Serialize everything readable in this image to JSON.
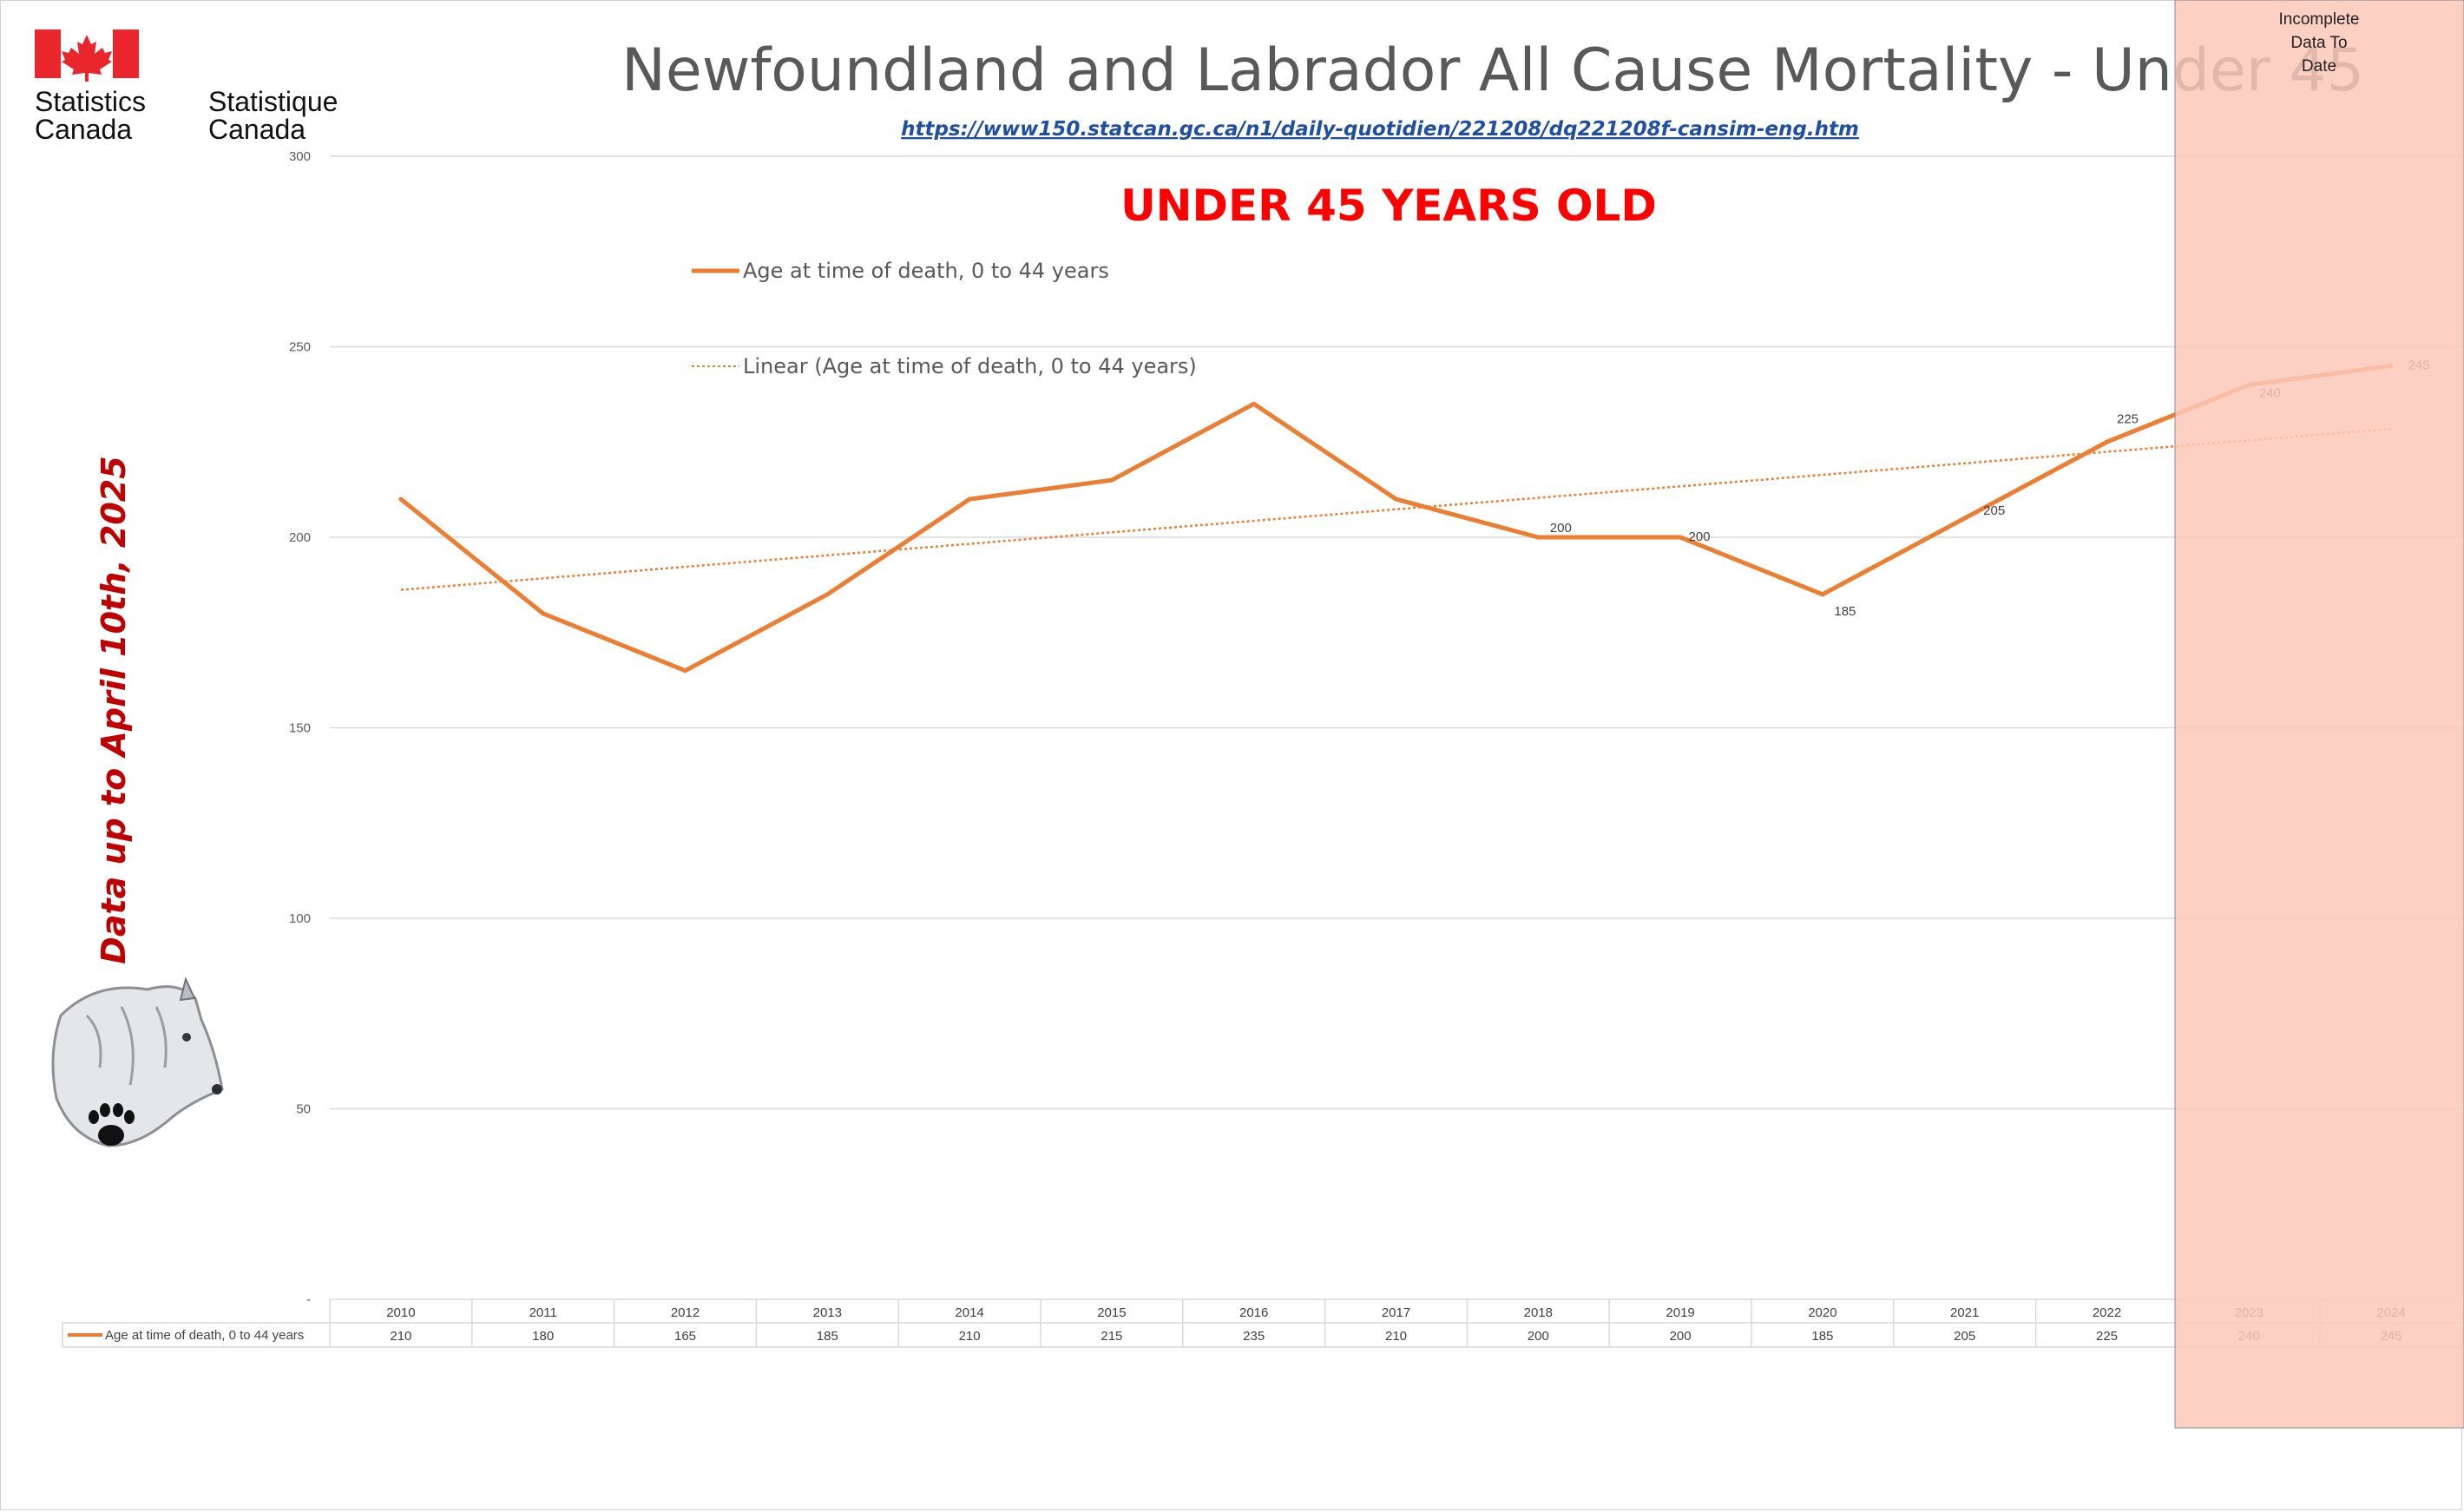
{
  "logo": {
    "name_en_line1": "Statistics",
    "name_en_line2": "Canada",
    "name_fr_line1": "Statistique",
    "name_fr_line2": "Canada"
  },
  "header": {
    "title": "Newfoundland and Labrador All Cause Mortality - Under 45",
    "url": "https://www150.statcan.gc.ca/n1/daily-quotidien/221208/dq221208f-cansim-eng.htm",
    "subtitle": "UNDER 45 YEARS OLD"
  },
  "side_note": "Data up to April 10th, 2025",
  "incomplete_note": {
    "line1": "Incomplete",
    "line2": "Data To",
    "line3": "Date",
    "color": "#fcc8b8"
  },
  "colors": {
    "series": "#ed7d31",
    "gridline": "#d9d9d9",
    "side_note": "#c00000",
    "subtitle": "#ff0000"
  },
  "chart_data": {
    "type": "line",
    "x": [
      2010,
      2011,
      2012,
      2013,
      2014,
      2015,
      2016,
      2017,
      2018,
      2019,
      2020,
      2021,
      2022,
      2023,
      2024
    ],
    "categories": [
      "2010",
      "2011",
      "2012",
      "2013",
      "2014",
      "2015",
      "2016",
      "2017",
      "2018",
      "2019",
      "2020",
      "2021",
      "2022",
      "2023",
      "2024"
    ],
    "series": [
      {
        "name": "Age at time of death, 0 to 44 years",
        "values": [
          210,
          180,
          165,
          185,
          210,
          215,
          235,
          210,
          200,
          200,
          185,
          205,
          225,
          240,
          245
        ]
      }
    ],
    "trendline": {
      "name": "Linear (Age at time of death, 0 to 44 years)",
      "type": "linear"
    },
    "data_labels": [
      {
        "category": "2018",
        "text": "200"
      },
      {
        "category": "2019",
        "text": "200"
      },
      {
        "category": "2020",
        "text": "185"
      },
      {
        "category": "2021",
        "text": "205"
      },
      {
        "category": "2022",
        "text": "225"
      },
      {
        "category": "2023",
        "text": "240"
      },
      {
        "category": "2024",
        "text": "245"
      }
    ],
    "yticks": [
      "-",
      "50",
      "100",
      "150",
      "200",
      "250",
      "300"
    ],
    "ylim": [
      0,
      300
    ],
    "grid": true,
    "legend": "top",
    "data_table": {
      "row_label": "Age at time of death, 0 to 44 years",
      "values": [
        "210",
        "180",
        "165",
        "185",
        "210",
        "215",
        "235",
        "210",
        "200",
        "200",
        "185",
        "205",
        "225",
        "240",
        "245"
      ]
    },
    "highlight_region": [
      "2023",
      "2024"
    ]
  }
}
